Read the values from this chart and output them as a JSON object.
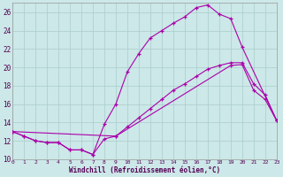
{
  "background_color": "#cce8e8",
  "grid_color": "#aacccc",
  "line_color": "#aa00aa",
  "xlabel": "Windchill (Refroidissement éolien,°C)",
  "xlim": [
    0,
    23
  ],
  "ylim": [
    10,
    27
  ],
  "yticks": [
    10,
    12,
    14,
    16,
    18,
    20,
    22,
    24,
    26
  ],
  "xticks": [
    0,
    1,
    2,
    3,
    4,
    5,
    6,
    7,
    8,
    9,
    10,
    11,
    12,
    13,
    14,
    15,
    16,
    17,
    18,
    19,
    20,
    21,
    22,
    23
  ],
  "line1_x": [
    0,
    1,
    2,
    3,
    4,
    5,
    6,
    7,
    8,
    9,
    10,
    11,
    12,
    13,
    14,
    15,
    16,
    17,
    18,
    19,
    20,
    23
  ],
  "line1_y": [
    13,
    12.5,
    12,
    11.8,
    11.8,
    11.0,
    11.0,
    10.5,
    13.8,
    16.0,
    19.5,
    21.5,
    23.2,
    24.0,
    24.8,
    25.5,
    26.5,
    26.8,
    25.8,
    25.3,
    22.2,
    14.2
  ],
  "line2_x": [
    0,
    1,
    2,
    3,
    4,
    5,
    6,
    7,
    8,
    9,
    19,
    20,
    21,
    22,
    23
  ],
  "line2_y": [
    13,
    12.5,
    12,
    11.8,
    11.8,
    11.0,
    11.0,
    10.5,
    12.2,
    12.5,
    20.2,
    20.3,
    17.5,
    16.5,
    14.2
  ],
  "line3_x": [
    0,
    9,
    10,
    11,
    12,
    13,
    14,
    15,
    16,
    17,
    18,
    19,
    20,
    21,
    22,
    23
  ],
  "line3_y": [
    13,
    12.5,
    13.5,
    14.5,
    15.5,
    16.5,
    17.5,
    18.2,
    19.0,
    19.8,
    20.2,
    20.5,
    20.5,
    18.2,
    17.0,
    14.2
  ]
}
